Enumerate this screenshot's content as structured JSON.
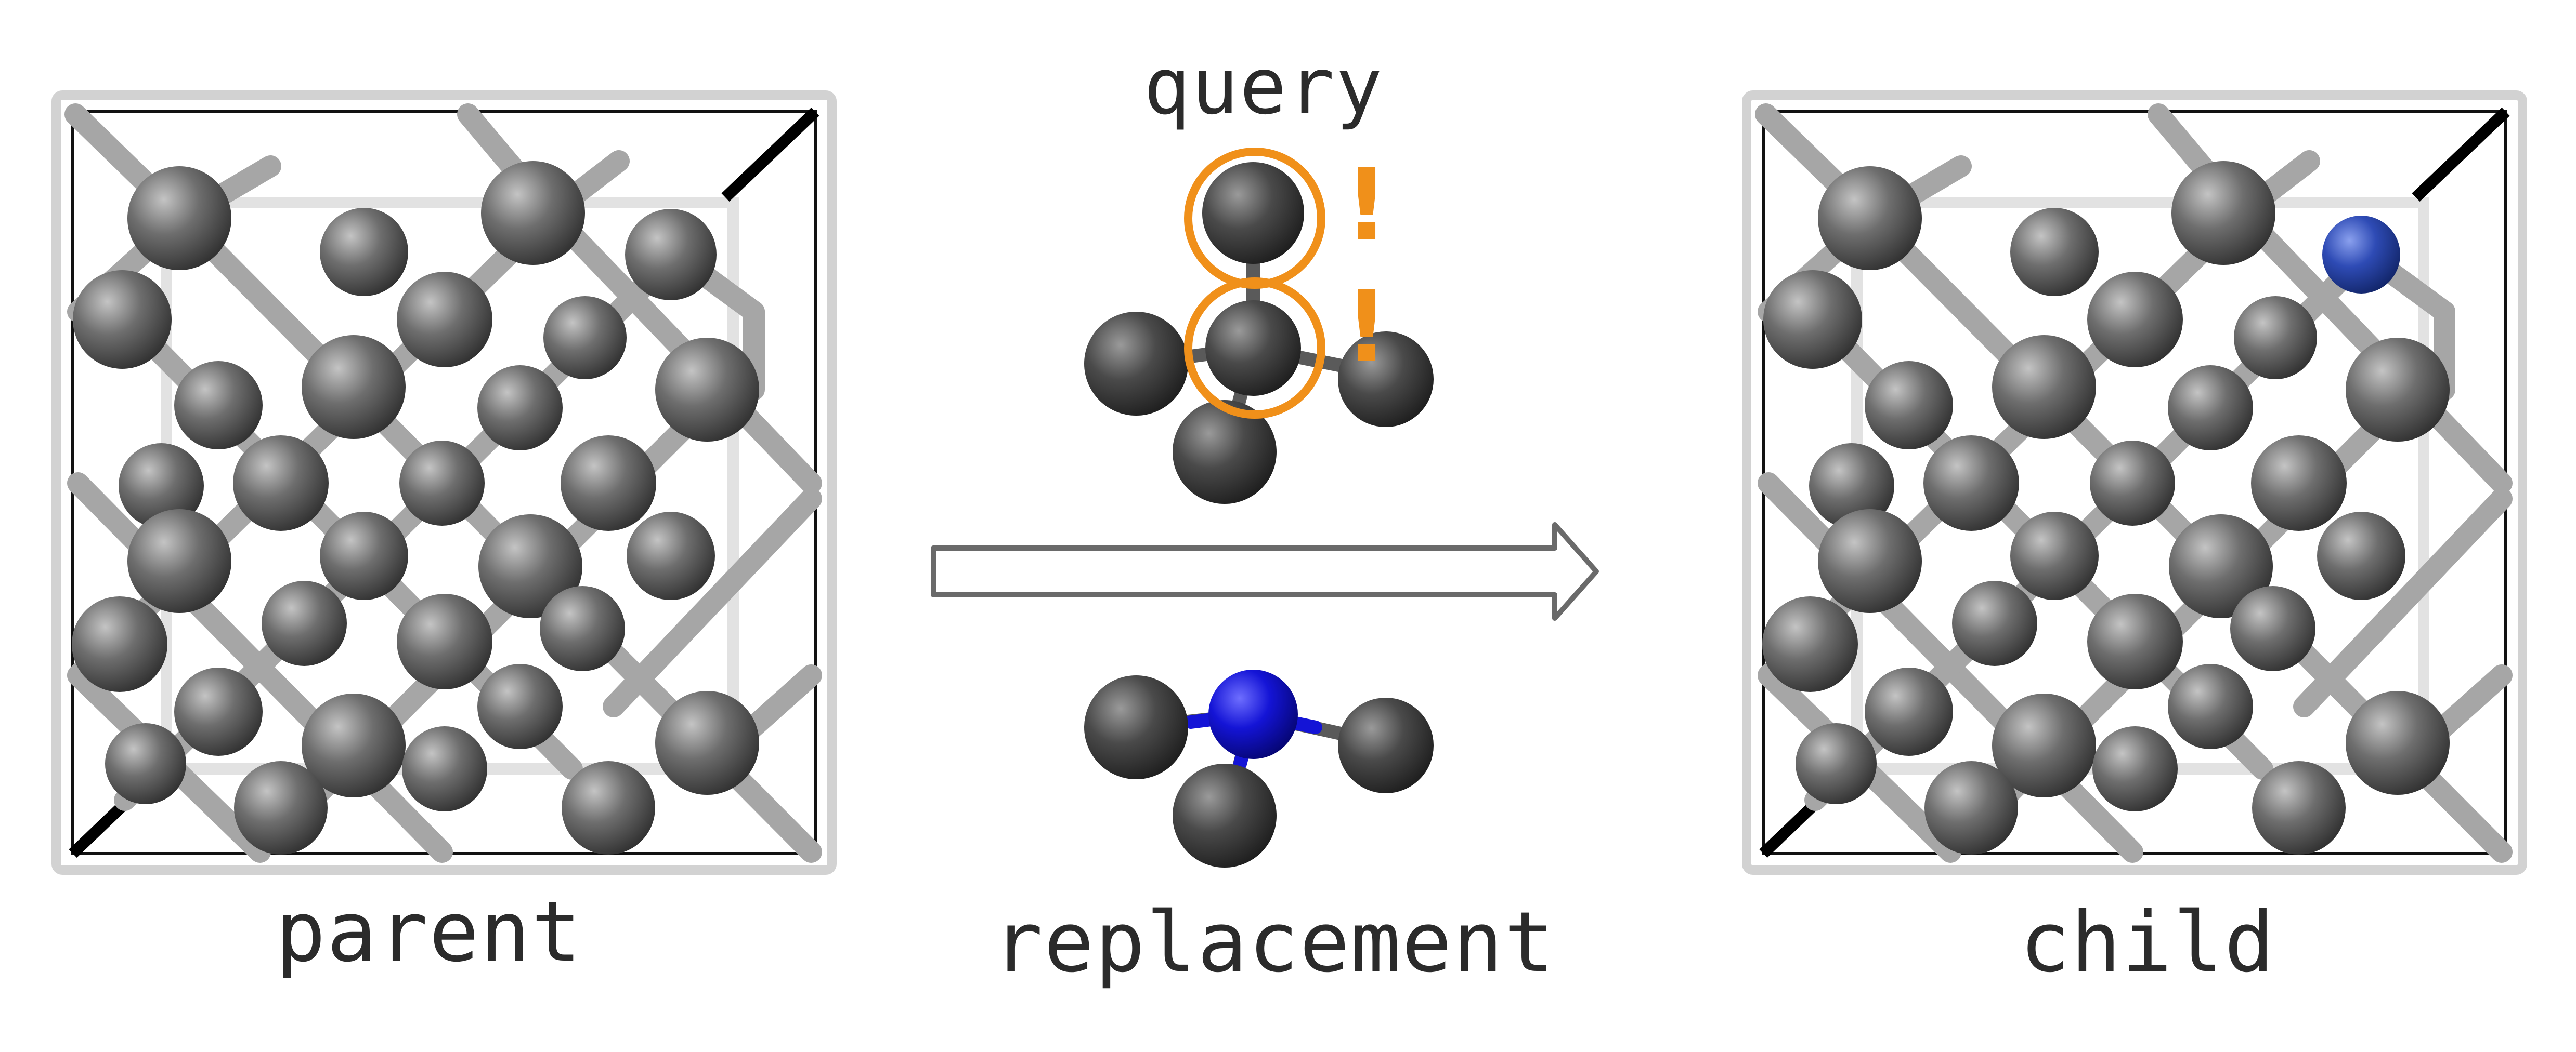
{
  "labels": {
    "parent": "parent",
    "query": "query",
    "replacement": "replacement",
    "child": "child",
    "mark": "!"
  },
  "colors": {
    "carbon": "#6b6b6b",
    "nitrogen": "#1414d6",
    "nitrogen_child": "#2e4bb5",
    "bond": "#a6a6a6",
    "cell_axis": "#000000",
    "highlight": "#f0901a",
    "text": "#2b2b2b"
  },
  "icons": {
    "arrow": "right-arrow-icon",
    "atom": "sphere-atom-icon",
    "highlight": "ring-highlight-icon"
  }
}
